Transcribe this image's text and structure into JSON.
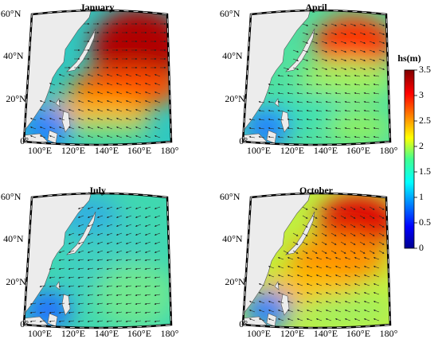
{
  "panels": [
    {
      "title": "January"
    },
    {
      "title": "April"
    },
    {
      "title": "July"
    },
    {
      "title": "October"
    }
  ],
  "lat_labels": [
    "0°",
    "20°N",
    "40°N",
    "60°N"
  ],
  "lon_labels": [
    "100°E",
    "120°E",
    "140°E",
    "160°E",
    "180°"
  ],
  "colorbar": {
    "label": "hs(m)",
    "range": [
      0,
      3.5
    ],
    "ticks": [
      0,
      0.5,
      1,
      1.5,
      2,
      2.5,
      3,
      3.5
    ]
  }
}
